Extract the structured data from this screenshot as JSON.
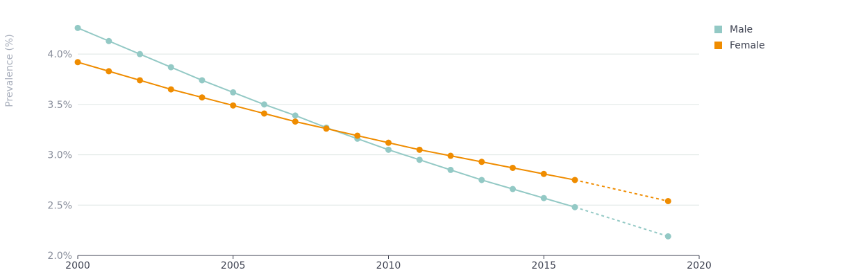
{
  "chart_data": {
    "type": "line",
    "ylabel": "Prevalence (%)",
    "xlabel": "",
    "xlim": [
      2000,
      2020
    ],
    "ylim": [
      2.0,
      4.4
    ],
    "x_ticks": [
      {
        "value": 2000,
        "label": "2000"
      },
      {
        "value": 2005,
        "label": "2005"
      },
      {
        "value": 2010,
        "label": "2010"
      },
      {
        "value": 2015,
        "label": "2015"
      },
      {
        "value": 2020,
        "label": "2020"
      }
    ],
    "y_ticks": [
      {
        "value": 2.0,
        "label": "2.0%"
      },
      {
        "value": 2.5,
        "label": "2.5%"
      },
      {
        "value": 3.0,
        "label": "3.0%"
      },
      {
        "value": 3.5,
        "label": "3.5%"
      },
      {
        "value": 4.0,
        "label": "4.0%"
      }
    ],
    "grid": "horizontal",
    "legend_position": "top-right",
    "series": [
      {
        "name": "Male",
        "color": "#93c9c5",
        "points": [
          {
            "x": 2000,
            "y": 4.26
          },
          {
            "x": 2001,
            "y": 4.13
          },
          {
            "x": 2002,
            "y": 4.0
          },
          {
            "x": 2003,
            "y": 3.87
          },
          {
            "x": 2004,
            "y": 3.74
          },
          {
            "x": 2005,
            "y": 3.62
          },
          {
            "x": 2006,
            "y": 3.5
          },
          {
            "x": 2007,
            "y": 3.39
          },
          {
            "x": 2008,
            "y": 3.27
          },
          {
            "x": 2009,
            "y": 3.16
          },
          {
            "x": 2010,
            "y": 3.05
          },
          {
            "x": 2011,
            "y": 2.95
          },
          {
            "x": 2012,
            "y": 2.85
          },
          {
            "x": 2013,
            "y": 2.75
          },
          {
            "x": 2014,
            "y": 2.66
          },
          {
            "x": 2015,
            "y": 2.57
          },
          {
            "x": 2016,
            "y": 2.48
          },
          {
            "x": 2019,
            "y": 2.19
          }
        ],
        "projected_from": 2016
      },
      {
        "name": "Female",
        "color": "#ef8c00",
        "points": [
          {
            "x": 2000,
            "y": 3.92
          },
          {
            "x": 2001,
            "y": 3.83
          },
          {
            "x": 2002,
            "y": 3.74
          },
          {
            "x": 2003,
            "y": 3.65
          },
          {
            "x": 2004,
            "y": 3.57
          },
          {
            "x": 2005,
            "y": 3.49
          },
          {
            "x": 2006,
            "y": 3.41
          },
          {
            "x": 2007,
            "y": 3.33
          },
          {
            "x": 2008,
            "y": 3.26
          },
          {
            "x": 2009,
            "y": 3.19
          },
          {
            "x": 2010,
            "y": 3.12
          },
          {
            "x": 2011,
            "y": 3.05
          },
          {
            "x": 2012,
            "y": 2.99
          },
          {
            "x": 2013,
            "y": 2.93
          },
          {
            "x": 2014,
            "y": 2.87
          },
          {
            "x": 2015,
            "y": 2.81
          },
          {
            "x": 2016,
            "y": 2.75
          },
          {
            "x": 2019,
            "y": 2.54
          }
        ],
        "projected_from": 2016
      }
    ]
  }
}
